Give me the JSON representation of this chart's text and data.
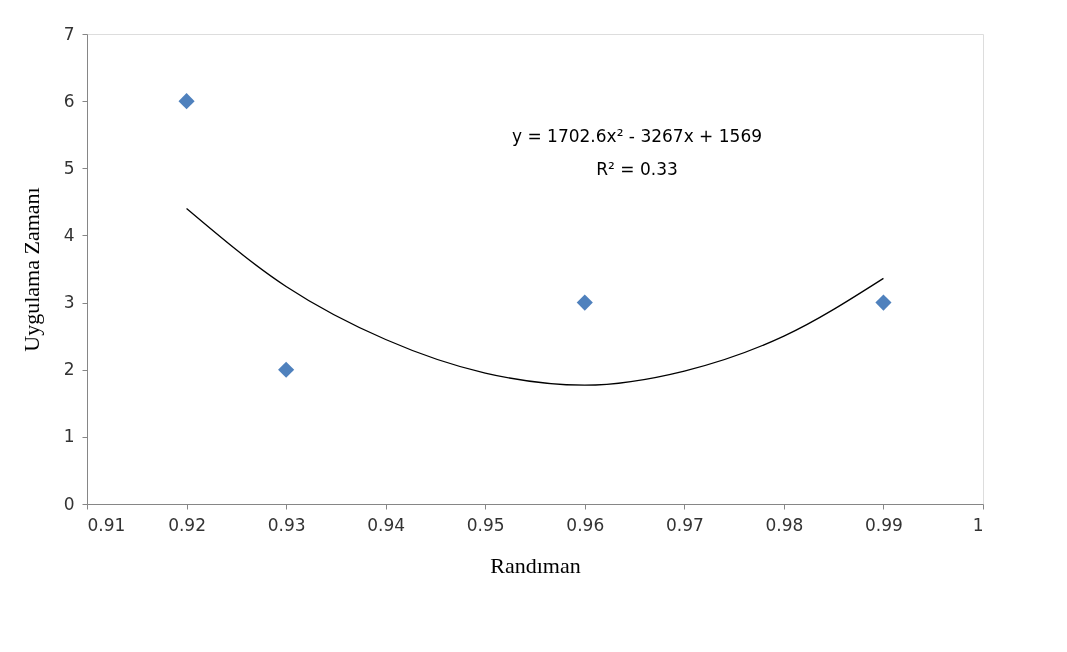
{
  "chart_data": {
    "type": "scatter",
    "xlabel": "Randıman",
    "ylabel": "Uygulama Zamanı",
    "xlim": [
      0.91,
      1
    ],
    "xticks": [
      0.91,
      0.92,
      0.93,
      0.94,
      0.95,
      0.96,
      0.97,
      0.98,
      0.99,
      1
    ],
    "ylim": [
      0,
      7
    ],
    "yticks": [
      0,
      1,
      2,
      3,
      4,
      5,
      6,
      7
    ],
    "grid": false,
    "annotations": [
      "y = 1702.6x² - 3267x + 1569",
      "R² = 0.33"
    ],
    "series": [
      {
        "color": "#4f81bd",
        "marker": "diamond",
        "x": [
          0.92,
          0.93,
          0.96,
          0.99
        ],
        "values": [
          6,
          2,
          3,
          3
        ]
      },
      {
        "type": "line",
        "color": "#000000",
        "marker": "none",
        "line_style": "solid",
        "x": [
          0.92,
          0.93,
          0.94,
          0.95,
          0.96,
          0.97,
          0.98,
          0.99
        ],
        "values": [
          4.4,
          3.24,
          2.45,
          1.95,
          1.77,
          1.98,
          2.5,
          3.36
        ]
      }
    ]
  }
}
